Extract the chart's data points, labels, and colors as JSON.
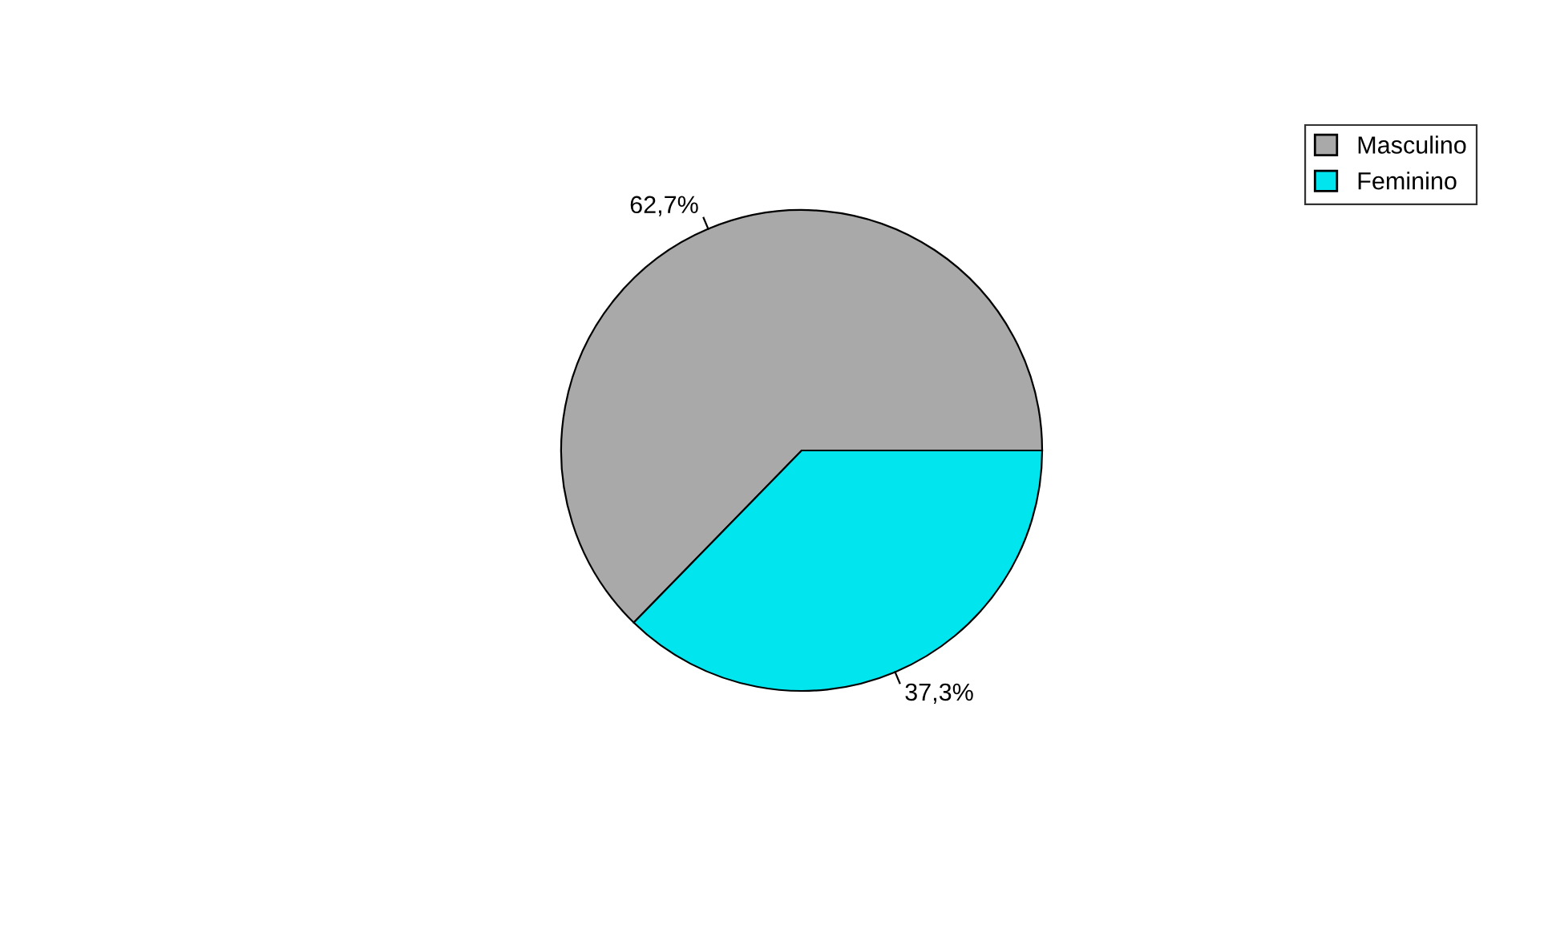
{
  "chart_data": {
    "type": "pie",
    "categories": [
      "Masculino",
      "Feminino"
    ],
    "values": [
      62.7,
      37.3
    ],
    "colors": [
      "#a9a9a9",
      "#00e5ee"
    ],
    "value_labels": [
      "62,7%",
      "37,3%"
    ],
    "legend": "top right"
  }
}
